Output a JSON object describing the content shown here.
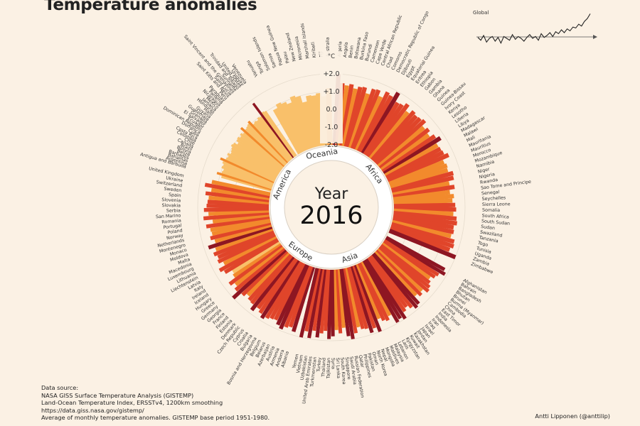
{
  "title": "Temperature anomalies",
  "source": {
    "heading": "Data source:",
    "line1": "NASA GISS Surface Temperature Analysis (GISTEMP)",
    "line2": "Land-Ocean Temperature Index, ERSSTv4, 1200km smoothing",
    "line3": "https://data.giss.nasa.gov/gistemp/",
    "line4": "Average of monthly temperature anomalies. GISTEMP base period 1951-1980."
  },
  "credit": "Antti Lipponen (@anttilip)",
  "inset": {
    "label": "Global",
    "series": [
      0.05,
      -0.1,
      0.15,
      -0.2,
      0.0,
      0.1,
      -0.15,
      0.05,
      -0.25,
      0.1,
      0.0,
      -0.1,
      0.2,
      -0.05,
      0.1,
      0.0,
      -0.15,
      0.05,
      0.2,
      0.0,
      0.1,
      -0.1,
      0.25,
      0.05,
      0.15,
      0.3,
      0.1,
      0.35,
      0.25,
      0.45,
      0.3,
      0.5,
      0.4,
      0.6,
      0.55,
      0.75,
      0.65,
      0.9,
      1.05,
      1.3
    ]
  },
  "chart_data": {
    "type": "bar",
    "subtype": "radial",
    "year_label": "Year",
    "year": "2016",
    "unit": "°C",
    "ylim": [
      -2.0,
      2.0
    ],
    "ticks": [
      "+2.0",
      "+1.0",
      "0.0",
      "-1.0",
      "-2.0"
    ],
    "regions": [
      "Oceania",
      "Africa",
      "Asia",
      "Europe",
      "America"
    ],
    "countries": {
      "oceania": [
        "Vanuatu",
        "Tonga",
        "Solomon Islands",
        "Samoa",
        "Papua New Guinea",
        "Palau",
        "New Zealand",
        "Micronesia",
        "Marshall Islands",
        "Kiribati",
        "Fiji",
        "Australia"
      ],
      "africa": [
        "Algeria",
        "Angola",
        "Benin",
        "Botswana",
        "Burkina Faso",
        "Burundi",
        "Cameroon",
        "Cape Verde",
        "Central African Republic",
        "Chad",
        "Comoros",
        "Democratic Republic of Congo",
        "Djibouti",
        "Egypt",
        "Equatorial Guinea",
        "Eritrea",
        "Ethiopia",
        "Gabon",
        "Gambia",
        "Ghana",
        "Guinea",
        "Guinea-Bissau",
        "Ivory Coast",
        "Kenya",
        "Lesotho",
        "Liberia",
        "Libya",
        "Madagascar",
        "Malawi",
        "Mali",
        "Mauritania",
        "Mauritius",
        "Morocco",
        "Mozambique",
        "Namibia",
        "Niger",
        "Nigeria",
        "Rwanda",
        "Sao Tome and Principe",
        "Senegal",
        "Seychelles",
        "Sierra Leone",
        "Somalia",
        "South Africa",
        "South Sudan",
        "Sudan",
        "Swaziland",
        "Tanzania",
        "Togo",
        "Tunisia",
        "Uganda",
        "Zambia",
        "Zimbabwe"
      ],
      "asia": [
        "Afghanistan",
        "Bahrain",
        "Bangladesh",
        "Bhutan",
        "Brunei",
        "Burma (Myanmar)",
        "Cambodia",
        "China",
        "East Timor",
        "India",
        "Indonesia",
        "Iran",
        "Iraq",
        "Israel",
        "Japan",
        "Jordan",
        "Kazakhstan",
        "Kuwait",
        "Kyrgyzstan",
        "Laos",
        "Lebanon",
        "Malaysia",
        "Maldives",
        "Mongolia",
        "Nepal",
        "North Korea",
        "Oman",
        "Pakistan",
        "Philippines",
        "Qatar",
        "Russian Federation",
        "Saudi Arabia",
        "Singapore",
        "South Korea",
        "Sri Lanka",
        "Syria",
        "Tajikistan",
        "Thailand",
        "Turkey",
        "Turkmenistan",
        "United Arab Emirates",
        "Uzbekistan",
        "Vietnam",
        "Yemen"
      ],
      "europe": [
        "Albania",
        "Andorra",
        "Armenia",
        "Austria",
        "Azerbaijan",
        "Belarus",
        "Belgium",
        "Bosnia and Herzegovina",
        "Bulgaria",
        "Croatia",
        "Cyprus",
        "Czech Republic",
        "Denmark",
        "Estonia",
        "Finland",
        "France",
        "Georgia",
        "Germany",
        "Greece",
        "Hungary",
        "Iceland",
        "Ireland",
        "Italy",
        "Latvia",
        "Liechtenstein",
        "Lithuania",
        "Luxembourg",
        "Macedonia",
        "Malta",
        "Moldova",
        "Monaco",
        "Montenegro",
        "Netherlands",
        "Norway",
        "Poland",
        "Portugal",
        "Romania",
        "San Marino",
        "Serbia",
        "Slovakia",
        "Slovenia",
        "Spain",
        "Sweden",
        "Switzerland",
        "Ukraine",
        "United Kingdom"
      ],
      "america": [
        "Antigua and Barbuda",
        "Argentina",
        "Bahamas",
        "Barbados",
        "Belize",
        "Bolivia",
        "Brazil",
        "Canada",
        "Chile",
        "Colombia",
        "Costa Rica",
        "Cuba",
        "Dominica",
        "Dominican Republic",
        "Ecuador",
        "El Salvador",
        "Grenada",
        "Guatemala",
        "Guyana",
        "Haiti",
        "Honduras",
        "Jamaica",
        "Mexico",
        "Nicaragua",
        "Panama",
        "Paraguay",
        "Peru",
        "Saint Kitts and Nevis",
        "Saint Lucia",
        "Saint Vincent and the Grenadines",
        "Suriname",
        "Trinidad and Tobago",
        "United States",
        "Uruguay",
        "Venezuela"
      ]
    },
    "values": {
      "oceania": [
        0.85,
        1.05,
        0.95,
        0.8,
        1.1,
        1.0,
        0.6,
        0.9,
        0.85,
        0.95,
        0.75,
        1.2
      ],
      "africa": [
        2.2,
        1.5,
        1.4,
        1.5,
        1.3,
        1.45,
        1.5,
        1.2,
        1.55,
        1.6,
        1.3,
        1.7,
        1.6,
        1.95,
        1.45,
        1.5,
        1.7,
        1.35,
        1.6,
        1.5,
        1.55,
        1.65,
        1.35,
        1.5,
        1.3,
        1.55,
        1.75,
        1.4,
        1.45,
        1.5,
        1.7,
        1.3,
        1.4,
        1.35,
        1.6,
        1.55,
        1.25,
        1.5,
        1.2,
        1.4,
        1.3,
        1.45,
        1.5,
        1.35,
        1.55,
        1.6,
        1.45,
        1.5,
        1.4,
        1.65,
        1.7,
        1.55,
        2.2
      ],
      "asia": [
        1.75,
        1.9,
        1.6,
        1.5,
        1.3,
        1.45,
        1.6,
        1.7,
        1.4,
        1.55,
        1.35,
        1.8,
        1.9,
        1.7,
        1.5,
        1.65,
        2.05,
        1.85,
        1.95,
        1.4,
        1.6,
        1.5,
        1.3,
        2.1,
        1.7,
        1.9,
        1.6,
        1.55,
        1.4,
        1.7,
        2.2,
        1.8,
        1.3,
        1.6,
        1.4,
        1.75,
        1.9,
        1.45,
        1.6,
        1.85,
        1.5,
        1.95,
        1.6,
        2.3
      ],
      "europe": [
        1.8,
        1.6,
        1.7,
        1.9,
        1.75,
        1.55,
        1.6,
        1.7,
        1.85,
        1.65,
        1.5,
        1.8,
        1.5,
        1.45,
        1.3,
        1.5,
        2.1,
        1.6,
        1.4,
        1.65,
        1.2,
        1.1,
        1.5,
        1.7,
        1.3,
        1.55,
        1.45,
        1.6,
        1.4,
        1.75,
        1.3,
        1.5,
        1.35,
        1.4,
        1.6,
        1.2,
        1.7,
        1.4,
        1.65,
        1.5,
        1.45,
        1.4,
        1.6,
        1.3,
        1.7,
        1.35
      ],
      "america": [
        0.9,
        1.2,
        0.95,
        0.9,
        1.05,
        1.0,
        1.1,
        1.3,
        1.0,
        0.95,
        1.05,
        0.9,
        0.95,
        1.0,
        1.1,
        1.05,
        0.85,
        1.0,
        1.05,
        0.95,
        1.05,
        0.95,
        1.25,
        1.0,
        1.05,
        1.1,
        1.2,
        0.9,
        0.95,
        0.9,
        1.0,
        0.95,
        1.8,
        1.1,
        1.05
      ]
    },
    "colors": {
      "cold": "#f9c06a",
      "mid": "#f28a2c",
      "hot": "#e0452a",
      "extreme": "#8e1622",
      "ring": "#ffffff"
    }
  }
}
